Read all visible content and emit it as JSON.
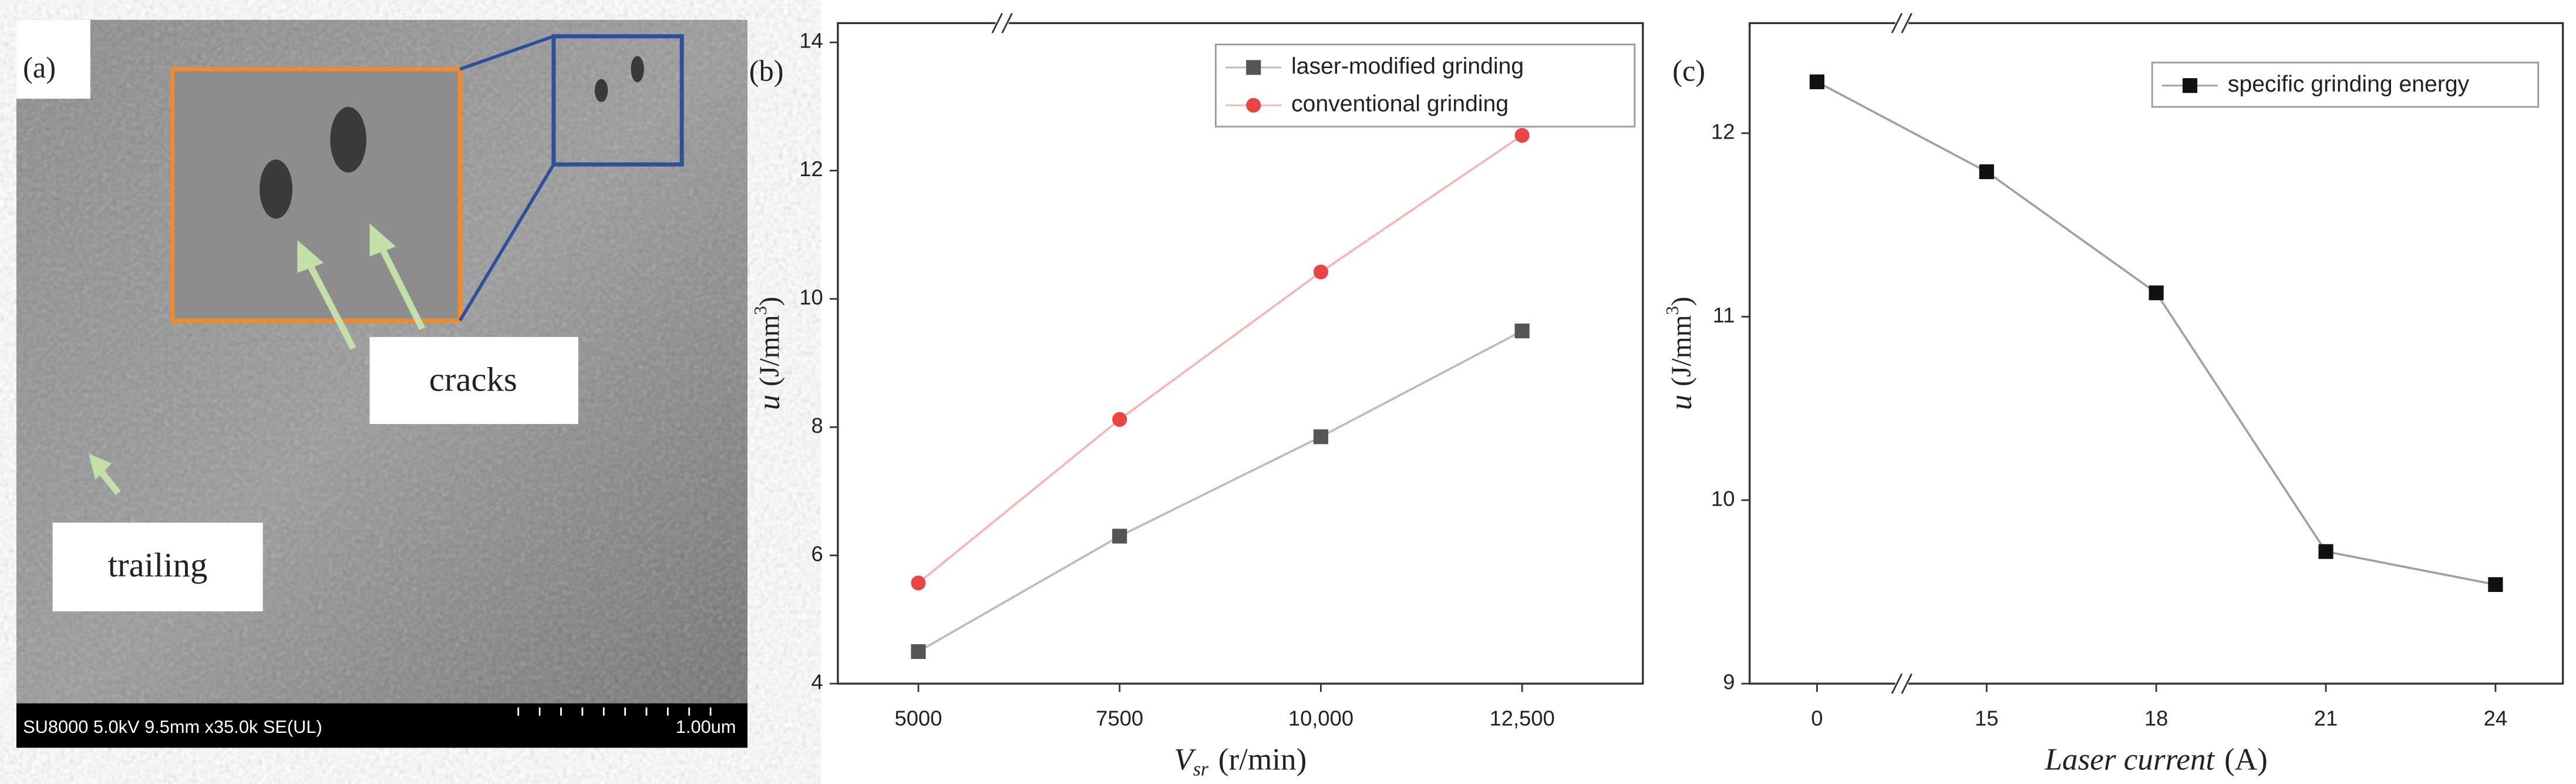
{
  "sem_image": {
    "panel_label": "(a)",
    "annotations": [
      "cracks",
      "trailing"
    ],
    "info_bar": "SU8000 5.0kV 9.5mm x35.0k SE(UL)",
    "scale_bar": "1.00um"
  },
  "chart_data": [
    {
      "type": "line",
      "panel_label": "(b)",
      "xlabel": [
        "V",
        "sr",
        "(r/min)"
      ],
      "ylabel": [
        "u",
        "(J/mm",
        "3",
        ")"
      ],
      "x": [
        5000,
        7500,
        10000,
        12500
      ],
      "xlim": [
        4000,
        14000
      ],
      "xticks": [
        5000,
        7500,
        {
          "value": 10000,
          "label": "10,000"
        },
        {
          "value": 12500,
          "label": "12,500"
        }
      ],
      "ylim": [
        4,
        14.3
      ],
      "yticks": [
        4,
        6,
        8,
        10,
        12,
        14
      ],
      "legend": "top-right",
      "grid": false,
      "series": [
        {
          "name": "laser-modified grinding",
          "color": "#555555",
          "marker": "square",
          "values": [
            4.5,
            6.3,
            7.85,
            9.5
          ]
        },
        {
          "name": "conventional grinding",
          "color": "#e84545",
          "marker": "circle",
          "values": [
            5.57,
            8.12,
            10.42,
            12.55
          ]
        }
      ]
    },
    {
      "type": "line",
      "panel_label": "(c)",
      "xlabel": [
        "Laser current",
        "(A)"
      ],
      "ylabel": [
        "u",
        "(J/mm",
        "3",
        ")"
      ],
      "categories": [
        "0",
        "15",
        "18",
        "21",
        "24"
      ],
      "ylim": [
        9,
        12.6
      ],
      "yticks": [
        9,
        10,
        11,
        12
      ],
      "legend": "top-right",
      "grid": false,
      "series": [
        {
          "name": "specific grinding energy",
          "color": "#111111",
          "marker": "square",
          "values": [
            12.28,
            11.79,
            11.13,
            9.72,
            9.54
          ]
        }
      ]
    }
  ]
}
